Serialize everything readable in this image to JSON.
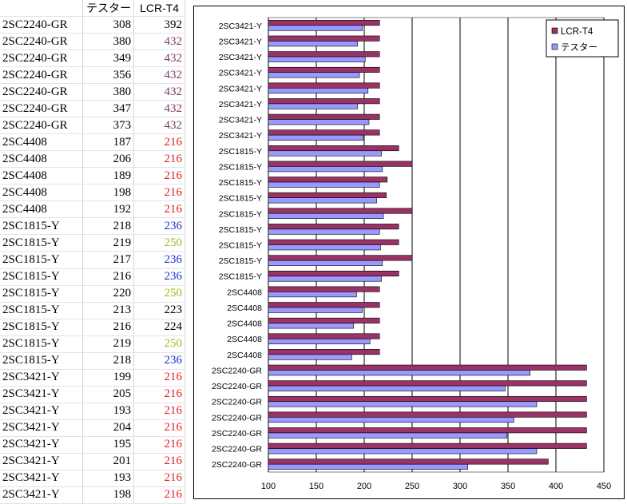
{
  "sheet": {
    "headers": [
      "",
      "テスター",
      "LCR-T4"
    ],
    "rows": [
      {
        "part": "2SC2240-GR",
        "tester": "308",
        "lcr": "392",
        "lcr_color": "#000000"
      },
      {
        "part": "2SC2240-GR",
        "tester": "380",
        "lcr": "432",
        "lcr_color": "#7d3c68"
      },
      {
        "part": "2SC2240-GR",
        "tester": "349",
        "lcr": "432",
        "lcr_color": "#7d3c68"
      },
      {
        "part": "2SC2240-GR",
        "tester": "356",
        "lcr": "432",
        "lcr_color": "#7d3c68"
      },
      {
        "part": "2SC2240-GR",
        "tester": "380",
        "lcr": "432",
        "lcr_color": "#7d3c68"
      },
      {
        "part": "2SC2240-GR",
        "tester": "347",
        "lcr": "432",
        "lcr_color": "#7d3c68"
      },
      {
        "part": "2SC2240-GR",
        "tester": "373",
        "lcr": "432",
        "lcr_color": "#7d3c68"
      },
      {
        "part": "2SC4408",
        "tester": "187",
        "lcr": "216",
        "lcr_color": "#e0201e"
      },
      {
        "part": "2SC4408",
        "tester": "206",
        "lcr": "216",
        "lcr_color": "#e0201e"
      },
      {
        "part": "2SC4408",
        "tester": "189",
        "lcr": "216",
        "lcr_color": "#e0201e"
      },
      {
        "part": "2SC4408",
        "tester": "198",
        "lcr": "216",
        "lcr_color": "#e0201e"
      },
      {
        "part": "2SC4408",
        "tester": "192",
        "lcr": "216",
        "lcr_color": "#e0201e"
      },
      {
        "part": "2SC1815-Y",
        "tester": "218",
        "lcr": "236",
        "lcr_color": "#1c2fd6"
      },
      {
        "part": "2SC1815-Y",
        "tester": "219",
        "lcr": "250",
        "lcr_color": "#9abf1e"
      },
      {
        "part": "2SC1815-Y",
        "tester": "217",
        "lcr": "236",
        "lcr_color": "#1c2fd6"
      },
      {
        "part": "2SC1815-Y",
        "tester": "216",
        "lcr": "236",
        "lcr_color": "#1c2fd6"
      },
      {
        "part": "2SC1815-Y",
        "tester": "220",
        "lcr": "250",
        "lcr_color": "#9abf1e"
      },
      {
        "part": "2SC1815-Y",
        "tester": "213",
        "lcr": "223",
        "lcr_color": "#000000"
      },
      {
        "part": "2SC1815-Y",
        "tester": "216",
        "lcr": "224",
        "lcr_color": "#000000"
      },
      {
        "part": "2SC1815-Y",
        "tester": "219",
        "lcr": "250",
        "lcr_color": "#9abf1e"
      },
      {
        "part": "2SC1815-Y",
        "tester": "218",
        "lcr": "236",
        "lcr_color": "#1c2fd6"
      },
      {
        "part": "2SC3421-Y",
        "tester": "199",
        "lcr": "216",
        "lcr_color": "#e0201e"
      },
      {
        "part": "2SC3421-Y",
        "tester": "205",
        "lcr": "216",
        "lcr_color": "#e0201e"
      },
      {
        "part": "2SC3421-Y",
        "tester": "193",
        "lcr": "216",
        "lcr_color": "#e0201e"
      },
      {
        "part": "2SC3421-Y",
        "tester": "204",
        "lcr": "216",
        "lcr_color": "#e0201e"
      },
      {
        "part": "2SC3421-Y",
        "tester": "195",
        "lcr": "216",
        "lcr_color": "#e0201e"
      },
      {
        "part": "2SC3421-Y",
        "tester": "201",
        "lcr": "216",
        "lcr_color": "#e0201e"
      },
      {
        "part": "2SC3421-Y",
        "tester": "193",
        "lcr": "216",
        "lcr_color": "#e0201e"
      },
      {
        "part": "2SC3421-Y",
        "tester": "198",
        "lcr": "216",
        "lcr_color": "#e0201e"
      }
    ]
  },
  "chart_data": {
    "type": "bar",
    "orientation": "horizontal",
    "categories": [
      "2SC2240-GR",
      "2SC2240-GR",
      "2SC2240-GR",
      "2SC2240-GR",
      "2SC2240-GR",
      "2SC2240-GR",
      "2SC2240-GR",
      "2SC4408",
      "2SC4408",
      "2SC4408",
      "2SC4408",
      "2SC4408",
      "2SC1815-Y",
      "2SC1815-Y",
      "2SC1815-Y",
      "2SC1815-Y",
      "2SC1815-Y",
      "2SC1815-Y",
      "2SC1815-Y",
      "2SC1815-Y",
      "2SC1815-Y",
      "2SC3421-Y",
      "2SC3421-Y",
      "2SC3421-Y",
      "2SC3421-Y",
      "2SC3421-Y",
      "2SC3421-Y",
      "2SC3421-Y",
      "2SC3421-Y"
    ],
    "category_order": "first-at-bottom",
    "series": [
      {
        "name": "LCR-T4",
        "color": "#993366",
        "values": [
          392,
          432,
          432,
          432,
          432,
          432,
          432,
          216,
          216,
          216,
          216,
          216,
          236,
          250,
          236,
          236,
          250,
          223,
          224,
          250,
          236,
          216,
          216,
          216,
          216,
          216,
          216,
          216,
          216
        ]
      },
      {
        "name": "テスター",
        "color": "#9999ff",
        "values": [
          308,
          380,
          349,
          356,
          380,
          347,
          373,
          187,
          206,
          189,
          198,
          192,
          218,
          219,
          217,
          216,
          220,
          213,
          216,
          219,
          218,
          199,
          205,
          193,
          204,
          195,
          201,
          193,
          198
        ]
      }
    ],
    "xlim": [
      100,
      450
    ],
    "xticks": [
      "100",
      "150",
      "200",
      "250",
      "300",
      "350",
      "400",
      "450"
    ],
    "grid": "vertical",
    "legend_position": "top-right",
    "title": "",
    "xlabel": "",
    "ylabel": ""
  }
}
